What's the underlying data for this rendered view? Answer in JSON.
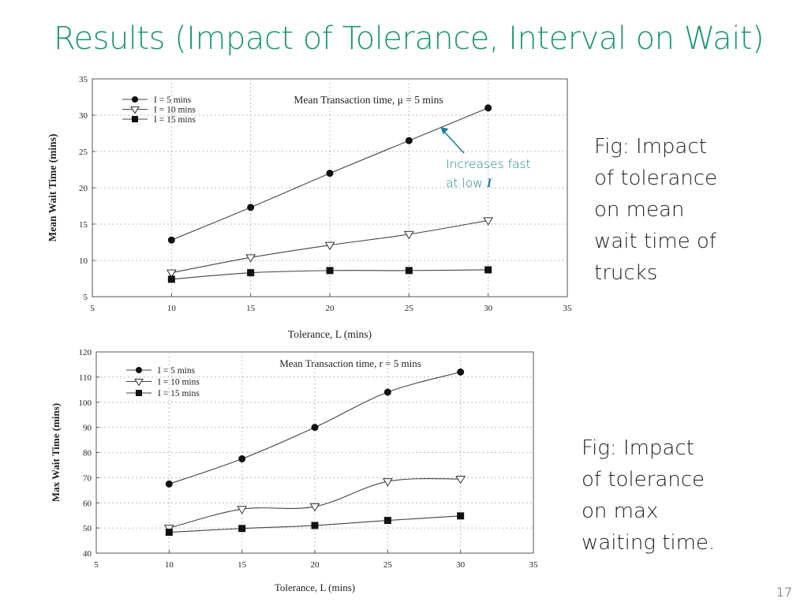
{
  "slide": {
    "title": "Results  (Impact of Tolerance, Interval on Wait)",
    "page_number": "17",
    "captions": [
      {
        "lines": [
          "Fig: Impact",
          "of tolerance",
          "on mean",
          "wait time of",
          "trucks"
        ]
      },
      {
        "lines": [
          "Fig: Impact",
          "of tolerance",
          "on max",
          "waiting time."
        ]
      }
    ],
    "annotation": {
      "line1": "Increases fast",
      "line2_prefix": "at low ",
      "line2_symbol": "I",
      "color": "#1a7fa0"
    },
    "title_color": "#1b9a6d"
  },
  "chart_data": [
    {
      "type": "line",
      "title": "Mean Transaction time, μ = 5 mins",
      "xlabel": "Tolerance, L (mins)",
      "ylabel": "Mean Wait Time (mins)",
      "xlim": [
        5,
        35
      ],
      "ylim": [
        5,
        35
      ],
      "xticks": [
        5,
        10,
        15,
        20,
        25,
        30,
        35
      ],
      "yticks": [
        5,
        10,
        15,
        20,
        25,
        30,
        35
      ],
      "grid": true,
      "legend_position": "top-left",
      "x": [
        10,
        15,
        20,
        25,
        30
      ],
      "series": [
        {
          "name": "I = 5 mins",
          "marker": "circle",
          "values": [
            12.8,
            17.3,
            22.0,
            26.5,
            31.0
          ]
        },
        {
          "name": "I = 10 mins",
          "marker": "triangle-down",
          "values": [
            8.3,
            10.4,
            12.1,
            13.6,
            15.5
          ]
        },
        {
          "name": "I = 15 mins",
          "marker": "square",
          "values": [
            7.4,
            8.3,
            8.6,
            8.6,
            8.7
          ]
        }
      ]
    },
    {
      "type": "line",
      "title": "Mean Transaction time, r = 5 mins",
      "xlabel": "Tolerance, L (mins)",
      "ylabel": "Max Wait Time (mins)",
      "xlim": [
        5,
        35
      ],
      "ylim": [
        40,
        120
      ],
      "xticks": [
        5,
        10,
        15,
        20,
        25,
        30,
        35
      ],
      "yticks": [
        40,
        50,
        60,
        70,
        80,
        90,
        100,
        110,
        120
      ],
      "grid": true,
      "legend_position": "top-left",
      "x": [
        10,
        15,
        20,
        25,
        30
      ],
      "series": [
        {
          "name": "I = 5 mins",
          "marker": "circle",
          "values": [
            67.5,
            77.5,
            90.0,
            104.0,
            112.0
          ]
        },
        {
          "name": "I = 10 mins",
          "marker": "triangle-down",
          "values": [
            50.0,
            57.5,
            58.5,
            68.5,
            69.5
          ]
        },
        {
          "name": "I = 15 mins",
          "marker": "square",
          "values": [
            48.3,
            49.8,
            51.0,
            53.0,
            54.8
          ]
        }
      ]
    }
  ]
}
